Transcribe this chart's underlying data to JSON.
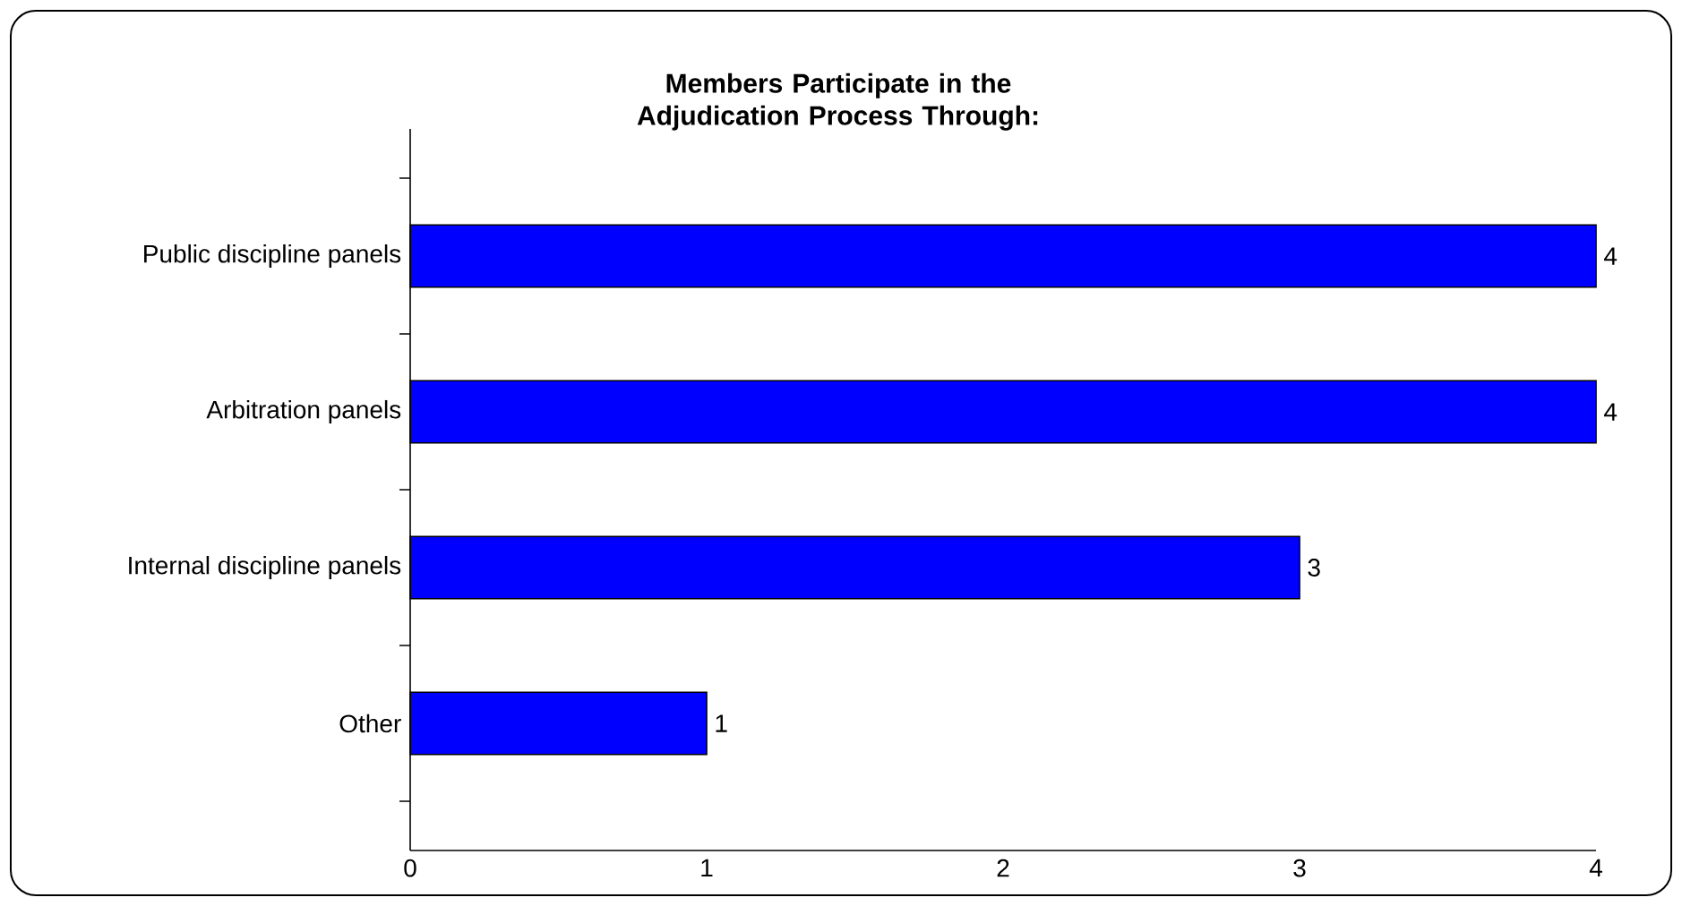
{
  "chart_data": {
    "type": "bar",
    "orientation": "horizontal",
    "title": "Members Participate in the Adjudication Process Through:",
    "categories": [
      "Public discipline panels",
      "Arbitration panels",
      "Internal discipline panels",
      "Other"
    ],
    "values": [
      4,
      4,
      3,
      1
    ],
    "color": "#0000ff",
    "xlim": [
      0,
      4
    ],
    "xticks": [
      0,
      1,
      2,
      3,
      4
    ],
    "data_labels": true,
    "grid": false
  }
}
